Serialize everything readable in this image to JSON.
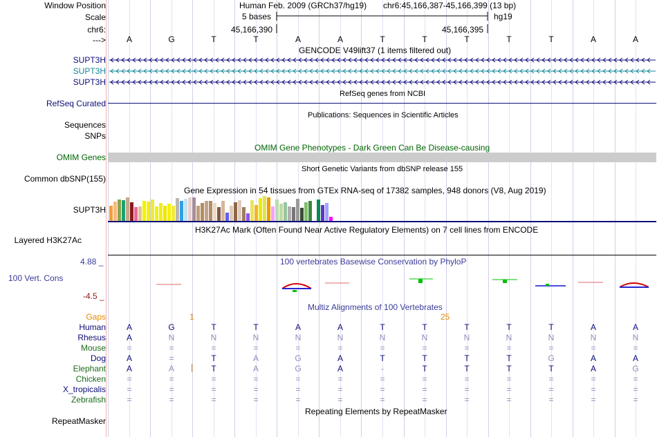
{
  "header": {
    "window_label": "Window Position",
    "scale_label": "Scale",
    "chrom_label": "chr6:",
    "arrow_label": "--->",
    "assembly": "Human Feb. 2009 (GRCh37/hg19)",
    "position": "chr6:45,166,387-45,166,399 (13 bp)",
    "scale_bases": "5 bases",
    "db": "hg19",
    "coord_1": "45,166,390",
    "coord_2": "45,166,395"
  },
  "bases": [
    "A",
    "G",
    "T",
    "T",
    "A",
    "A",
    "T",
    "T",
    "T",
    "T",
    "T",
    "A",
    "A"
  ],
  "tracks": {
    "gencode": {
      "title": "GENCODE V49lift37 (1 items filtered out)",
      "genes": [
        "SUPT3H",
        "SUPT3H",
        "SUPT3H"
      ]
    },
    "refseq": {
      "title": "RefSeq genes from NCBI",
      "label": "RefSeq Curated"
    },
    "publications": {
      "title": "Publications: Sequences in Scientific Articles",
      "label1": "Sequences",
      "label2": "SNPs"
    },
    "omim": {
      "title": "OMIM Gene Phenotypes - Dark Green Can Be Disease-causing",
      "label": "OMIM Genes"
    },
    "dbsnp": {
      "title": "Short Genetic Variants from dbSNP release 155",
      "label": "Common dbSNP(155)"
    },
    "gtex": {
      "title": "Gene Expression in 54 tissues from GTEx RNA-seq of 17382 samples, 948 donors (V8, Aug 2019)",
      "label": "SUPT3H",
      "bar_heights": [
        0.6,
        0.78,
        0.85,
        0.82,
        0.95,
        0.76,
        0.55,
        0.58,
        0.8,
        0.78,
        0.85,
        0.58,
        0.72,
        0.62,
        0.7,
        0.62,
        0.92,
        0.8,
        0.88,
        0.95,
        0.95,
        0.62,
        0.72,
        0.8,
        0.8,
        0.72,
        0.55,
        0.8,
        0.32,
        0.62,
        0.75,
        0.82,
        0.55,
        0.3,
        0.82,
        0.65,
        0.92,
        1.0,
        0.95,
        0.58,
        0.85,
        0.7,
        0.75,
        0.58,
        0.55,
        0.9,
        0.52,
        0.75,
        0.8,
        1.0,
        0.85,
        0.65,
        0.72,
        0.18
      ],
      "bar_colors": [
        "#f1a03a",
        "#f8b87c",
        "#86a550",
        "#1e9e71",
        "#c2a989",
        "#8b1d1d",
        "#e16c9a",
        "#e0c0a2",
        "#f3f000",
        "#f4f100",
        "#eeea3a",
        "#f0ef18",
        "#efec1e",
        "#eee600",
        "#f3f000",
        "#f0e93e",
        "#b9b6b2",
        "#2f9fe6",
        "#c3e3f0",
        "#e7cfd0",
        "#a88b9a",
        "#bf9e7a",
        "#b48d61",
        "#c1a48a",
        "#b58e63",
        "#eedac4",
        "#7d5c46",
        "#d9b697",
        "#5b62f0",
        "#ddcaba",
        "#8e6647",
        "#dcccc1",
        "#9f7d5b",
        "#8d55f0",
        "#eae35f",
        "#f4b428",
        "#ebeb00",
        "#e5e14a",
        "#ef9a00",
        "#f3a3ff",
        "#b8ddb0",
        "#bfd9a4",
        "#98c4a0",
        "#b0b0b0",
        "#757575",
        "#9a9a9a",
        "#3b4b3a",
        "#82be6a",
        "#3a8a3c",
        "#ffffff",
        "#068b54",
        "#5a36c6",
        "#a3a3ff",
        "#ff00ff"
      ]
    },
    "h3k27ac": {
      "title": "H3K27Ac Mark (Often Found Near Active Regulatory Elements) on 7 cell lines from ENCODE",
      "label": "Layered H3K27Ac"
    },
    "phylop": {
      "title": "100 vertebrates Basewise Conservation by PhyloP",
      "label": "100 Vert. Cons",
      "max": "4.88 _",
      "min": "-4.5 _"
    },
    "multiz": {
      "title": "Multiz Alignments of 100 Vertebrates",
      "gaps_label": "Gaps",
      "gap_1": "1",
      "gap_2": "25",
      "species": [
        {
          "name": "Human",
          "bases": [
            "A",
            "G",
            "T",
            "T",
            "A",
            "A",
            "T",
            "T",
            "T",
            "T",
            "T",
            "A",
            "A"
          ]
        },
        {
          "name": "Rhesus",
          "bases": [
            "A",
            "N",
            "N",
            "N",
            "N",
            "N",
            "N",
            "N",
            "N",
            "N",
            "N",
            "N",
            "N"
          ]
        },
        {
          "name": "Mouse",
          "bases": [
            "=",
            "=",
            "=",
            "=",
            "=",
            "=",
            "=",
            "=",
            "=",
            "=",
            "=",
            "=",
            "="
          ]
        },
        {
          "name": "Dog",
          "bases": [
            "A",
            "=",
            "T",
            "A",
            "G",
            "A",
            "T",
            "T",
            "T",
            "T",
            "G",
            "A",
            "A"
          ]
        },
        {
          "name": "Elephant",
          "bases": [
            "A",
            "A",
            "T",
            "A",
            "G",
            "A",
            "-",
            "T",
            "T",
            "T",
            "T",
            "A",
            "G"
          ]
        },
        {
          "name": "Chicken",
          "bases": [
            "=",
            "=",
            "=",
            "=",
            "=",
            "=",
            "=",
            "=",
            "=",
            "=",
            "=",
            "=",
            "="
          ]
        },
        {
          "name": "X_tropicalis",
          "bases": [
            "=",
            "=",
            "=",
            "=",
            "=",
            "=",
            "=",
            "=",
            "=",
            "=",
            "=",
            "=",
            "="
          ]
        },
        {
          "name": "Zebrafish",
          "bases": [
            "=",
            "=",
            "=",
            "=",
            "=",
            "=",
            "=",
            "=",
            "=",
            "=",
            "=",
            "=",
            "="
          ]
        }
      ]
    },
    "repeatmasker": {
      "title": "Repeating Elements by RepeatMasker",
      "label": "RepeatMasker"
    }
  },
  "colors": {
    "gene_dark": "#0c0c78",
    "gene_teal": "#12879a",
    "omim_bar": "#cccccc",
    "omim_title": "#006400",
    "phylop_title": "#3b3b9a",
    "phylop_min": "#8b1a1a",
    "gaps": "#e38c00",
    "conserved_base": "#0c0c78",
    "faded_base": "#8d8dba",
    "species_green": "#1b6a1b"
  }
}
